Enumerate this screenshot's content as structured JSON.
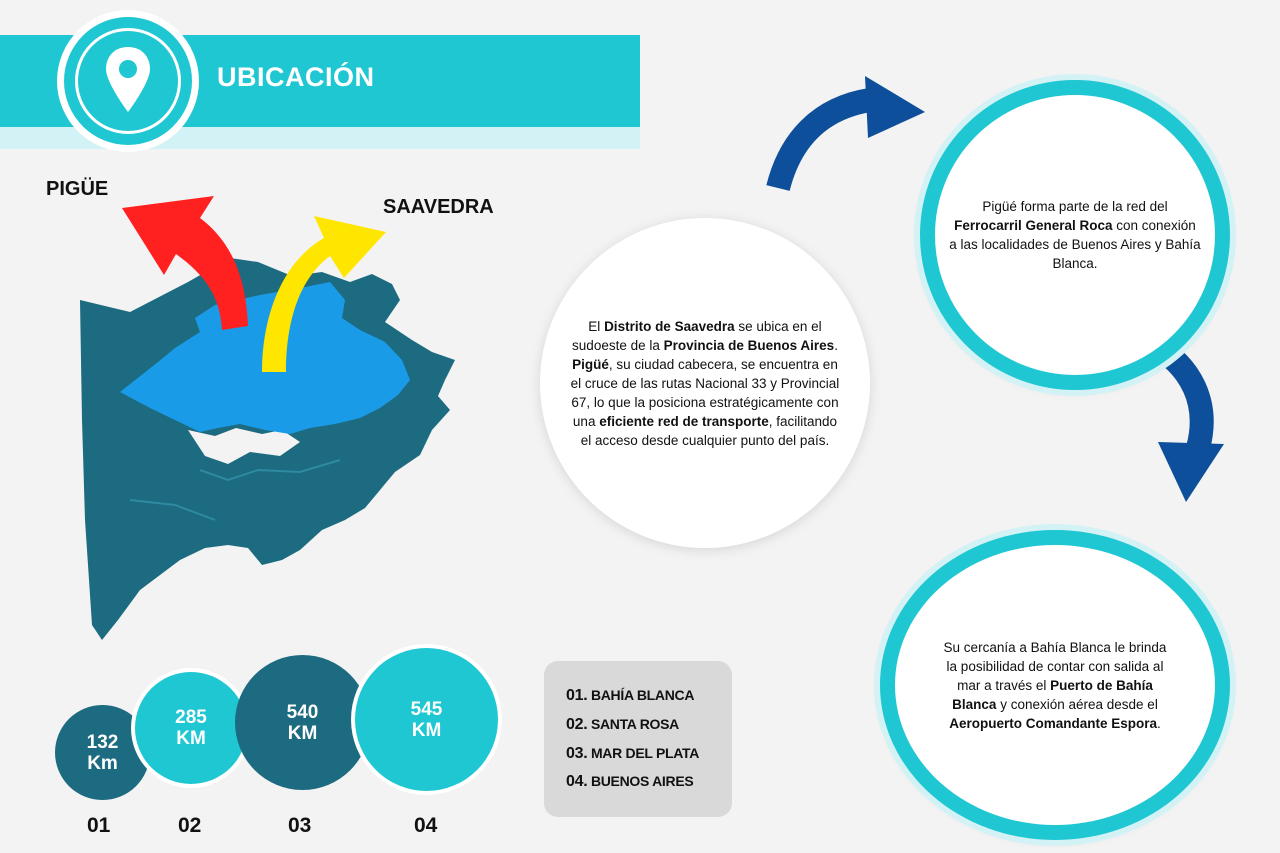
{
  "header": {
    "title": "UBICACIÓN",
    "icon": "location-pin-icon"
  },
  "map": {
    "labels": {
      "left": "PIGÜE",
      "right": "SAAVEDRA"
    },
    "colors": {
      "district": "#1a9be8",
      "region": "#1d6b80",
      "arrow_left": "#ff2020",
      "arrow_right": "#ffe600"
    }
  },
  "main_text": {
    "p1": "El ",
    "b1": "Distrito de Saavedra",
    "p2": " se ubica en el sudoeste de la ",
    "b2": "Provincia de Buenos Aires",
    "p3": ". ",
    "b3": "Pigüé",
    "p4": ", su ciudad cabecera, se encuentra en el cruce de las rutas Nacional 33 y Provincial 67, lo que la posiciona estratégicamente con una ",
    "b4": "eficiente red de transporte",
    "p5": ", facilitando el acceso desde cualquier punto del país."
  },
  "rail_text": {
    "p1": "Pigüé forma parte de la red del ",
    "b1": "Ferrocarril General Roca",
    "p2": " con conexión a las localidades de Buenos Aires y Bahía Blanca."
  },
  "port_text": {
    "p1": "Su cercanía a Bahía Blanca le brinda la posibilidad de contar con salida al mar a través el ",
    "b1": "Puerto de Bahía Blanca",
    "p2": " y conexión aérea desde el ",
    "b2": "Aeropuerto Comandante Espora",
    "p3": "."
  },
  "distances": [
    {
      "value": "132",
      "unit": "Km",
      "index": "01"
    },
    {
      "value": "285",
      "unit": "KM",
      "index": "02"
    },
    {
      "value": "540",
      "unit": "KM",
      "index": "03"
    },
    {
      "value": "545",
      "unit": "KM",
      "index": "04"
    }
  ],
  "legend": [
    {
      "n": "01.",
      "label": "BAHÍA BLANCA"
    },
    {
      "n": "02.",
      "label": "SANTA ROSA"
    },
    {
      "n": "03.",
      "label": "MAR DEL PLATA"
    },
    {
      "n": "04.",
      "label": "BUENOS AIRES"
    }
  ],
  "colors": {
    "accent": "#1fc7d2",
    "dark": "#1d6b80",
    "arrow_blue": "#0d4f9a"
  }
}
